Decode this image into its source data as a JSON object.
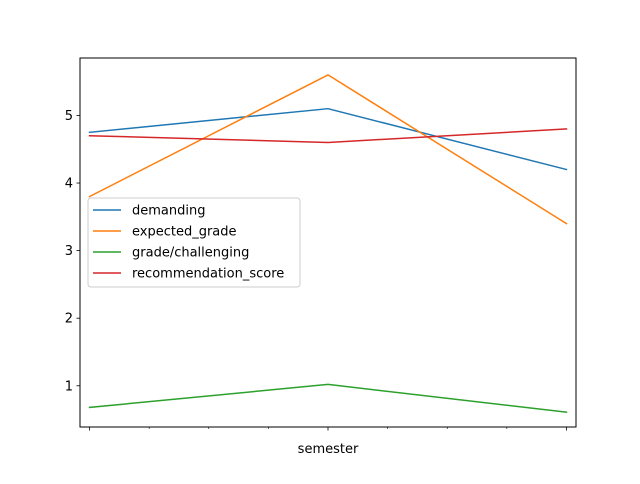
{
  "chart_data": {
    "type": "line",
    "title": "",
    "xlabel": "semester",
    "ylabel": "",
    "x": [
      0,
      1,
      2
    ],
    "xlim": [
      -0.04,
      2.04
    ],
    "ylim": [
      0.39,
      5.85
    ],
    "yticks": [
      1,
      2,
      3,
      4,
      5
    ],
    "grid": false,
    "legend_position": "center-left",
    "series": [
      {
        "name": "demanding",
        "color": "#1f77b4",
        "values": [
          4.75,
          5.1,
          4.2
        ]
      },
      {
        "name": "expected_grade",
        "color": "#ff7f0e",
        "values": [
          3.8,
          5.6,
          3.4
        ]
      },
      {
        "name": "grade/challenging",
        "color": "#2ca02c",
        "values": [
          0.68,
          1.02,
          0.61
        ]
      },
      {
        "name": "recommendation_score",
        "color": "#d62728",
        "values": [
          4.7,
          4.6,
          4.8
        ]
      }
    ]
  }
}
